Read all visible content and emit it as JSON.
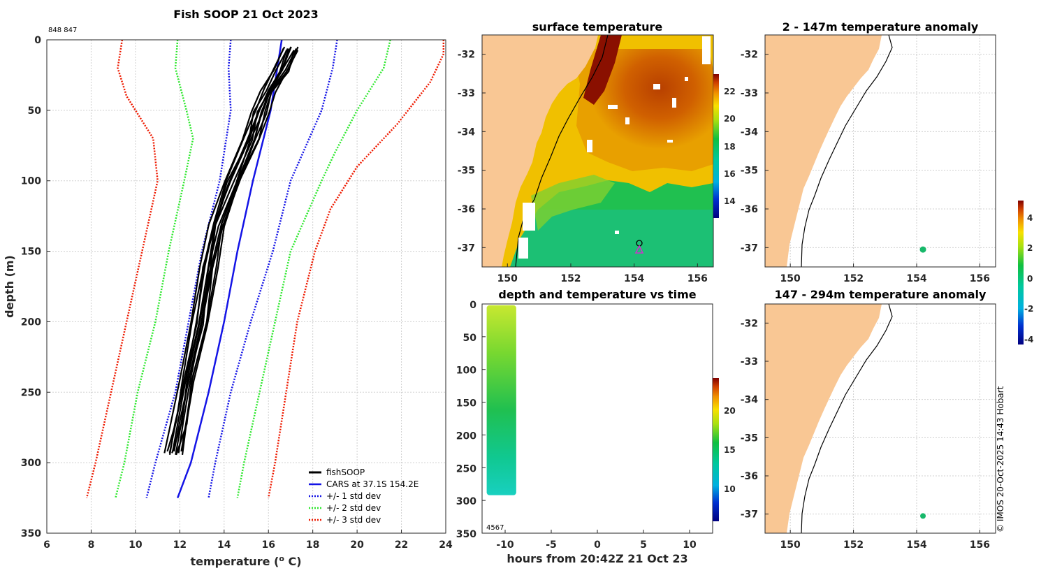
{
  "colors": {
    "land": "#f9c794",
    "ocean_warm": "#d04a00",
    "ocean_cool": "#28c050",
    "profile": "#000000",
    "cars": "#1414e6",
    "std1": "#1414e6",
    "std2": "#2ee82e",
    "std3": "#ee1a00",
    "marker": "#17b86a",
    "loc_circle": "#000000",
    "loc_triangle": "#cc33cc"
  },
  "profile_panel": {
    "title": "Fish SOOP 21 Oct 2023",
    "id_text": "848 847",
    "xlabel": "temperature (",
    "xlabel_sup": "o",
    "xlabel_unit": " C)",
    "ylabel": "depth (m)",
    "legend": {
      "fishsoop": "fishSOOP",
      "cars": "CARS at 37.1S 154.2E",
      "std1": "+/- 1 std dev",
      "std2": "+/- 2 std dev",
      "std3": "+/- 3 std dev"
    }
  },
  "surface_panel": {
    "title": "surface temperature",
    "cbar_ticks": [
      "22",
      "20",
      "18",
      "16",
      "14"
    ]
  },
  "time_panel": {
    "title": "depth and temperature vs time",
    "xlabel": "hours from 20:42Z 21 Oct 23",
    "count_text": "4567",
    "cbar_ticks": [
      "20",
      "15",
      "10"
    ]
  },
  "anom1_panel": {
    "title": "2 - 147m temperature anomaly"
  },
  "anom2_panel": {
    "title": "147 - 294m temperature anomaly"
  },
  "anom_cbar_ticks": [
    "4",
    "2",
    "0",
    "-2",
    "-4"
  ],
  "map_lat_ticks": [
    "-32",
    "-33",
    "-34",
    "-35",
    "-36",
    "-37"
  ],
  "map_lon_ticks": [
    "150",
    "152",
    "154",
    "156"
  ],
  "copyright": "© IMOS 20-Oct-2025 14:43 Hobart",
  "chart_data": [
    {
      "type": "line",
      "name": "profile",
      "title": "Fish SOOP 21 Oct 2023",
      "xlabel": "temperature (o C)",
      "ylabel": "depth (m)",
      "xlim": [
        6,
        24
      ],
      "ylim": [
        350,
        0
      ],
      "xticks": [
        6,
        8,
        10,
        12,
        14,
        16,
        18,
        20,
        22,
        24
      ],
      "yticks": [
        0,
        50,
        100,
        150,
        200,
        250,
        300,
        350
      ],
      "series": [
        {
          "name": "CARS at 37.1S 154.2E",
          "style": "solid",
          "depth": [
            0,
            50,
            100,
            150,
            200,
            250,
            300,
            325
          ],
          "temp": [
            16.6,
            16.1,
            15.3,
            14.6,
            14.0,
            13.3,
            12.5,
            11.9
          ]
        },
        {
          "name": "cars -1sd",
          "style": "dotted",
          "color": "std1",
          "depth": [
            0,
            20,
            50,
            100,
            150,
            200,
            250,
            300,
            325
          ],
          "temp": [
            14.3,
            14.2,
            14.3,
            13.8,
            13.0,
            12.4,
            11.8,
            10.9,
            10.5
          ]
        },
        {
          "name": "cars +1sd",
          "style": "dotted",
          "color": "std1",
          "depth": [
            0,
            20,
            50,
            100,
            150,
            200,
            250,
            300,
            325
          ],
          "temp": [
            19.1,
            18.9,
            18.4,
            17.0,
            16.2,
            15.2,
            14.3,
            13.6,
            13.3
          ]
        },
        {
          "name": "cars -2sd",
          "style": "dotted",
          "color": "std2",
          "depth": [
            0,
            20,
            50,
            70,
            100,
            150,
            200,
            250,
            300,
            325
          ],
          "temp": [
            11.9,
            11.8,
            12.3,
            12.6,
            12.2,
            11.5,
            10.9,
            10.1,
            9.5,
            9.1
          ]
        },
        {
          "name": "cars +2sd",
          "style": "dotted",
          "color": "std2",
          "depth": [
            0,
            20,
            50,
            80,
            100,
            150,
            200,
            250,
            300,
            325
          ],
          "temp": [
            21.5,
            21.2,
            20.0,
            19.0,
            18.4,
            17.0,
            16.3,
            15.6,
            14.9,
            14.6
          ]
        },
        {
          "name": "cars -3sd",
          "style": "dotted",
          "color": "std3",
          "depth": [
            0,
            20,
            40,
            70,
            100,
            150,
            200,
            250,
            300,
            325
          ],
          "temp": [
            9.4,
            9.2,
            9.6,
            10.8,
            11.0,
            10.3,
            9.6,
            8.9,
            8.2,
            7.8
          ]
        },
        {
          "name": "cars +3sd",
          "style": "dotted",
          "color": "std3",
          "depth": [
            0,
            10,
            30,
            60,
            90,
            120,
            150,
            200,
            250,
            300,
            325
          ],
          "temp": [
            23.9,
            23.9,
            23.3,
            21.8,
            20.0,
            18.8,
            18.1,
            17.3,
            16.8,
            16.3,
            16.0
          ]
        },
        {
          "name": "fishSOOP",
          "style": "bundle",
          "depth": [
            5,
            20,
            35,
            50,
            70,
            100,
            130,
            160,
            200,
            240,
            270,
            292
          ],
          "temp": [
            17.0,
            16.6,
            16.0,
            15.6,
            15.2,
            14.4,
            13.7,
            13.3,
            12.9,
            12.4,
            12.0,
            11.7
          ]
        }
      ]
    },
    {
      "type": "heatmap",
      "name": "surface temperature",
      "xlim": [
        149.2,
        156.5
      ],
      "ylim": [
        -37.5,
        -31.5
      ],
      "colorbar_range": [
        13,
        23
      ],
      "location": {
        "lon": 154.2,
        "lat": -37.0
      }
    },
    {
      "type": "scatter",
      "name": "depth and temperature vs time",
      "xlabel": "hours from 20:42Z 21 Oct 23",
      "xlim": [
        -12.5,
        12.5
      ],
      "ylim": [
        350,
        0
      ],
      "xticks": [
        -10,
        -5,
        0,
        5,
        10
      ],
      "yticks": [
        0,
        50,
        100,
        150,
        200,
        250,
        300,
        350
      ],
      "colorbar_range": [
        6,
        24
      ],
      "colorbar_ticks": [
        20,
        15,
        10
      ],
      "hours": [
        -12.0,
        -8.8
      ],
      "max_depth": 292
    },
    {
      "type": "scatter",
      "name": "2 - 147m temperature anomaly",
      "xlim": [
        149.2,
        156.5
      ],
      "ylim": [
        -37.5,
        -31.5
      ],
      "points": [
        {
          "lon": 154.2,
          "lat": -37.05,
          "anomaly": 0.3
        }
      ],
      "colorbar_range": [
        -4.3,
        5.3
      ]
    },
    {
      "type": "scatter",
      "name": "147 - 294m temperature anomaly",
      "xlim": [
        149.2,
        156.5
      ],
      "ylim": [
        -37.5,
        -31.5
      ],
      "points": [
        {
          "lon": 154.2,
          "lat": -37.05,
          "anomaly": 0.3
        }
      ],
      "colorbar_range": [
        -4.3,
        5.3
      ]
    }
  ]
}
